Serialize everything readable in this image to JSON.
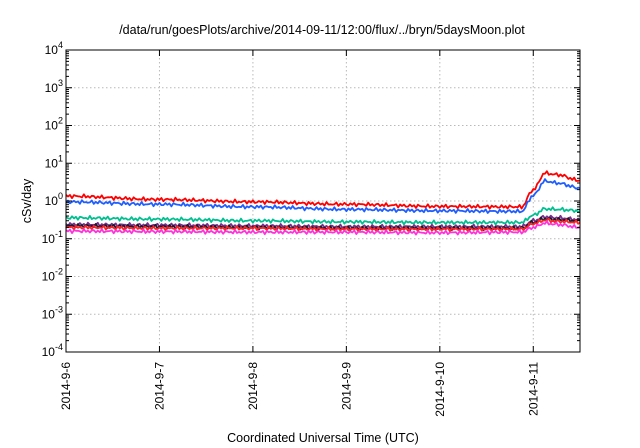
{
  "chart_data": {
    "type": "line",
    "title": "/data/run/goesPlots/archive/2014-09-11/12:00/flux/../bryn/5daysMoon.plot",
    "xlabel": "Coordinated Universal Time (UTC)",
    "ylabel": "cSv/day",
    "yscale": "log",
    "ylim": [
      0.0001,
      10000
    ],
    "xlim": [
      "2014-9-6",
      "2014-9-11 12:00"
    ],
    "x_ticks": [
      "2014-9-6",
      "2014-9-7",
      "2014-9-8",
      "2014-9-9",
      "2014-9-10",
      "2014-9-11"
    ],
    "y_ticks": [
      {
        "base": "10",
        "exp": "-4"
      },
      {
        "base": "10",
        "exp": "-3"
      },
      {
        "base": "10",
        "exp": "-2"
      },
      {
        "base": "10",
        "exp": "-1"
      },
      {
        "base": "10",
        "exp": "0"
      },
      {
        "base": "10",
        "exp": "1"
      },
      {
        "base": "10",
        "exp": "2"
      },
      {
        "base": "10",
        "exp": "3"
      },
      {
        "base": "10",
        "exp": "4"
      }
    ],
    "grid": true,
    "x": [
      "2014-9-6 00:00",
      "2014-9-7 00:00",
      "2014-9-8 00:00",
      "2014-9-9 00:00",
      "2014-9-10 00:00",
      "2014-9-10 21:00",
      "2014-9-11 00:00",
      "2014-9-11 03:00",
      "2014-9-11 06:00",
      "2014-9-11 12:00"
    ],
    "series": [
      {
        "color": "#ff0000",
        "values": [
          1.35,
          1.1,
          0.95,
          0.82,
          0.72,
          0.7,
          2.0,
          5.5,
          5.0,
          3.5
        ]
      },
      {
        "color": "#1f5fff",
        "values": [
          0.95,
          0.82,
          0.7,
          0.6,
          0.55,
          0.53,
          1.4,
          3.4,
          3.0,
          2.2
        ]
      },
      {
        "color": "#00c090",
        "values": [
          0.36,
          0.33,
          0.3,
          0.28,
          0.27,
          0.27,
          0.42,
          0.62,
          0.6,
          0.55
        ]
      },
      {
        "color": "#7b2c8f",
        "values": [
          0.24,
          0.23,
          0.22,
          0.21,
          0.21,
          0.21,
          0.3,
          0.38,
          0.36,
          0.32
        ]
      },
      {
        "color": "#1a1a2e",
        "values": [
          0.22,
          0.21,
          0.2,
          0.19,
          0.19,
          0.19,
          0.27,
          0.34,
          0.32,
          0.3
        ]
      },
      {
        "color": "#ff2222",
        "values": [
          0.2,
          0.19,
          0.19,
          0.18,
          0.18,
          0.18,
          0.25,
          0.31,
          0.29,
          0.27
        ]
      },
      {
        "color": "#ff33dd",
        "values": [
          0.16,
          0.155,
          0.15,
          0.15,
          0.145,
          0.15,
          0.2,
          0.26,
          0.24,
          0.2
        ]
      }
    ]
  }
}
